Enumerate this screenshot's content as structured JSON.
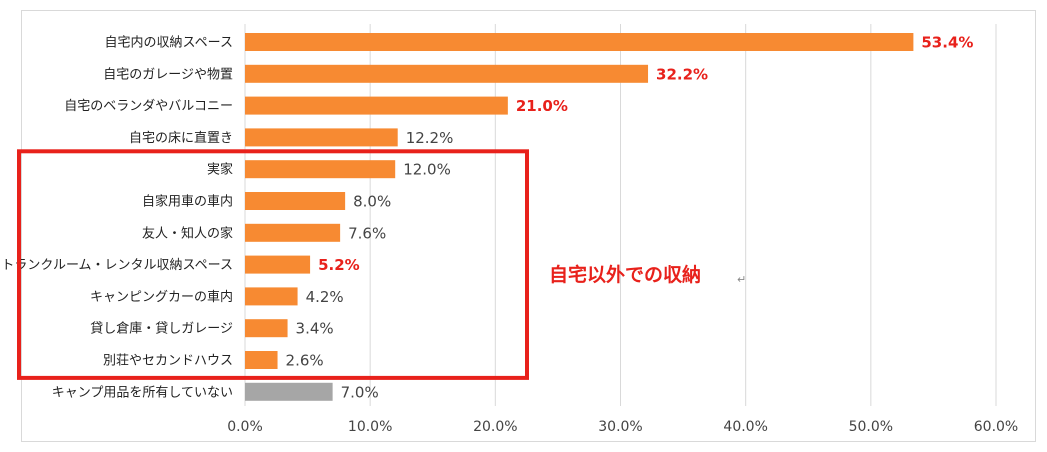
{
  "chart_data": {
    "type": "bar",
    "orientation": "horizontal",
    "categories": [
      "自宅内の収納スペース",
      "自宅のガレージや物置",
      "自宅のベランダやバルコニー",
      "自宅の床に直置き",
      "実家",
      "自家用車の車内",
      "友人・知人の家",
      "トランクルーム・レンタル収納スペース",
      "キャンピングカーの車内",
      "貸し倉庫・貸しガレージ",
      "別荘やセカンドハウス",
      "キャンプ用品を所有していない"
    ],
    "values": [
      53.4,
      32.2,
      21.0,
      12.2,
      12.0,
      8.0,
      7.6,
      5.2,
      4.2,
      3.4,
      2.6,
      7.0
    ],
    "value_labels": [
      "53.4%",
      "32.2%",
      "21.0%",
      "12.2%",
      "12.0%",
      "8.0%",
      "7.6%",
      "5.2%",
      "4.2%",
      "3.4%",
      "2.6%",
      "7.0%"
    ],
    "highlighted_labels": [
      0,
      1,
      2,
      7
    ],
    "bar_colors": [
      "#f78a32",
      "#f78a32",
      "#f78a32",
      "#f78a32",
      "#f78a32",
      "#f78a32",
      "#f78a32",
      "#f78a32",
      "#f78a32",
      "#f78a32",
      "#f78a32",
      "#a6a6a6"
    ],
    "xlim": [
      0,
      60
    ],
    "x_ticks": [
      "0.0%",
      "10.0%",
      "20.0%",
      "30.0%",
      "40.0%",
      "50.0%",
      "60.0%"
    ],
    "grid": true,
    "title": "",
    "xlabel": "",
    "ylabel": "",
    "annotation": {
      "text": "自宅以外での収納",
      "mark": "↵",
      "color": "#e8211b",
      "box_from_category": 4,
      "box_to_category": 10
    },
    "colors": {
      "bar": "#f78a32",
      "bar_other": "#a6a6a6",
      "highlight_text": "#e8211b",
      "grid": "#d9d9d9"
    }
  }
}
